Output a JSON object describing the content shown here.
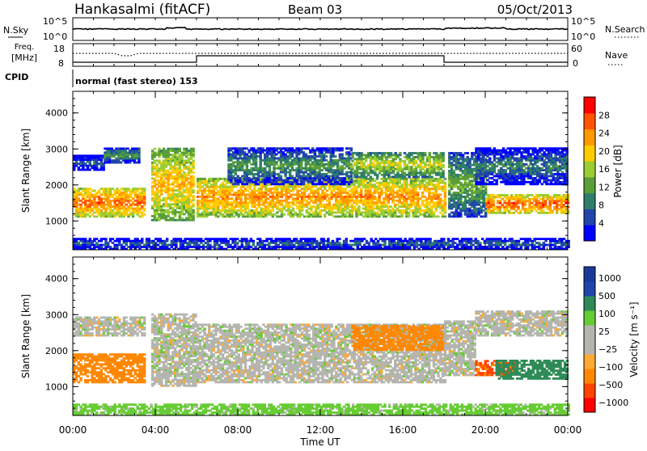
{
  "header": {
    "station": "Hankasalmi (fitACF)",
    "beam": "Beam 03",
    "date": "05/Oct/2013"
  },
  "noise_panel": {
    "left_label": "N.Sky",
    "right_label": "N.Search",
    "left_ticks": [
      "10^5",
      "10^0"
    ],
    "right_ticks": [
      "10^5",
      "10^0"
    ]
  },
  "freq_panel": {
    "left_label_line1": "Freq.",
    "left_label_line2": "[MHz]",
    "right_label": "Nave",
    "left_ticks": [
      "18",
      "8"
    ],
    "right_ticks": [
      "60",
      "0"
    ]
  },
  "cpid": {
    "label": "CPID",
    "text": "normal (fast stereo) 153"
  },
  "time_axis": {
    "label": "Time UT",
    "ticks": [
      "00:00",
      "04:00",
      "08:00",
      "12:00",
      "16:00",
      "20:00",
      "00:00"
    ]
  },
  "colors": {
    "power_scale": [
      "#0000ff",
      "#2244aa",
      "#2e7d6b",
      "#5a9e3a",
      "#9acd32",
      "#ffcc00",
      "#ff9900",
      "#ff5500",
      "#ff0000"
    ],
    "velocity_scale": [
      "#ff0000",
      "#ff4400",
      "#ff8800",
      "#ffaa33",
      "#b5b5b0",
      "#b5b5b0",
      "#66cc33",
      "#2e8b57",
      "#2244aa",
      "#1a3a99"
    ]
  },
  "chart_data": [
    {
      "type": "heatmap",
      "name": "power",
      "ylabel": "Slant Range [km]",
      "yticks": [
        "1000",
        "2000",
        "3000",
        "4000"
      ],
      "ylim": [
        200,
        4600
      ],
      "colorbar_label": "Power [dB]",
      "colorbar_ticks": [
        "28",
        "24",
        "20",
        "16",
        "12",
        "8",
        "4"
      ],
      "colorbar_range": [
        0,
        32
      ],
      "xlim_hours": [
        0,
        24
      ],
      "bands": [
        {
          "t0": 0.0,
          "t1": 3.5,
          "r0": 1100,
          "r1": 1900,
          "level": 26
        },
        {
          "t0": 0.0,
          "t1": 1.5,
          "r0": 2400,
          "r1": 2800,
          "level": 8
        },
        {
          "t0": 1.5,
          "t1": 3.2,
          "r0": 2600,
          "r1": 3000,
          "level": 12
        },
        {
          "t0": 3.8,
          "t1": 5.8,
          "r0": 1000,
          "r1": 3000,
          "level": 22
        },
        {
          "t0": 6.0,
          "t1": 18.0,
          "r0": 1100,
          "r1": 2200,
          "level": 24
        },
        {
          "t0": 7.5,
          "t1": 13.5,
          "r0": 2000,
          "r1": 3000,
          "level": 12
        },
        {
          "t0": 13.5,
          "t1": 18.0,
          "r0": 2200,
          "r1": 2900,
          "level": 18
        },
        {
          "t0": 18.2,
          "t1": 20.0,
          "r0": 1100,
          "r1": 2900,
          "level": 14
        },
        {
          "t0": 20.0,
          "t1": 24.0,
          "r0": 1200,
          "r1": 1700,
          "level": 27
        },
        {
          "t0": 19.5,
          "t1": 24.0,
          "r0": 2000,
          "r1": 3000,
          "level": 10
        },
        {
          "t0": 0.0,
          "t1": 24.0,
          "r0": 200,
          "r1": 500,
          "level": 8
        }
      ]
    },
    {
      "type": "heatmap",
      "name": "velocity",
      "ylabel": "Slant Range [km]",
      "yticks": [
        "1000",
        "2000",
        "3000",
        "4000"
      ],
      "ylim": [
        200,
        4600
      ],
      "colorbar_label": "Velocity [m s⁻¹]",
      "colorbar_ticks": [
        "1000",
        "500",
        "100",
        "25",
        "−25",
        "−100",
        "−500",
        "−1000"
      ],
      "xlim_hours": [
        0,
        24
      ],
      "bands": [
        {
          "t0": 0.0,
          "t1": 3.5,
          "r0": 1100,
          "r1": 1900,
          "velocity": -300
        },
        {
          "t0": 0.0,
          "t1": 3.5,
          "r0": 2400,
          "r1": 2900,
          "velocity": 0
        },
        {
          "t0": 3.8,
          "t1": 6.0,
          "r0": 1000,
          "r1": 3000,
          "velocity": 0
        },
        {
          "t0": 6.0,
          "t1": 18.0,
          "r0": 1100,
          "r1": 2700,
          "velocity": 0
        },
        {
          "t0": 13.5,
          "t1": 18.0,
          "r0": 2000,
          "r1": 2700,
          "velocity": -250
        },
        {
          "t0": 18.0,
          "t1": 19.5,
          "r0": 1300,
          "r1": 2800,
          "velocity": 0
        },
        {
          "t0": 19.5,
          "t1": 21.5,
          "r0": 1300,
          "r1": 1700,
          "velocity": -600
        },
        {
          "t0": 20.5,
          "t1": 24.0,
          "r0": 1200,
          "r1": 1700,
          "velocity": 200
        },
        {
          "t0": 19.5,
          "t1": 24.0,
          "r0": 2400,
          "r1": 3100,
          "velocity": 0
        },
        {
          "t0": 0.0,
          "t1": 24.0,
          "r0": 200,
          "r1": 500,
          "velocity": 50
        }
      ]
    }
  ]
}
